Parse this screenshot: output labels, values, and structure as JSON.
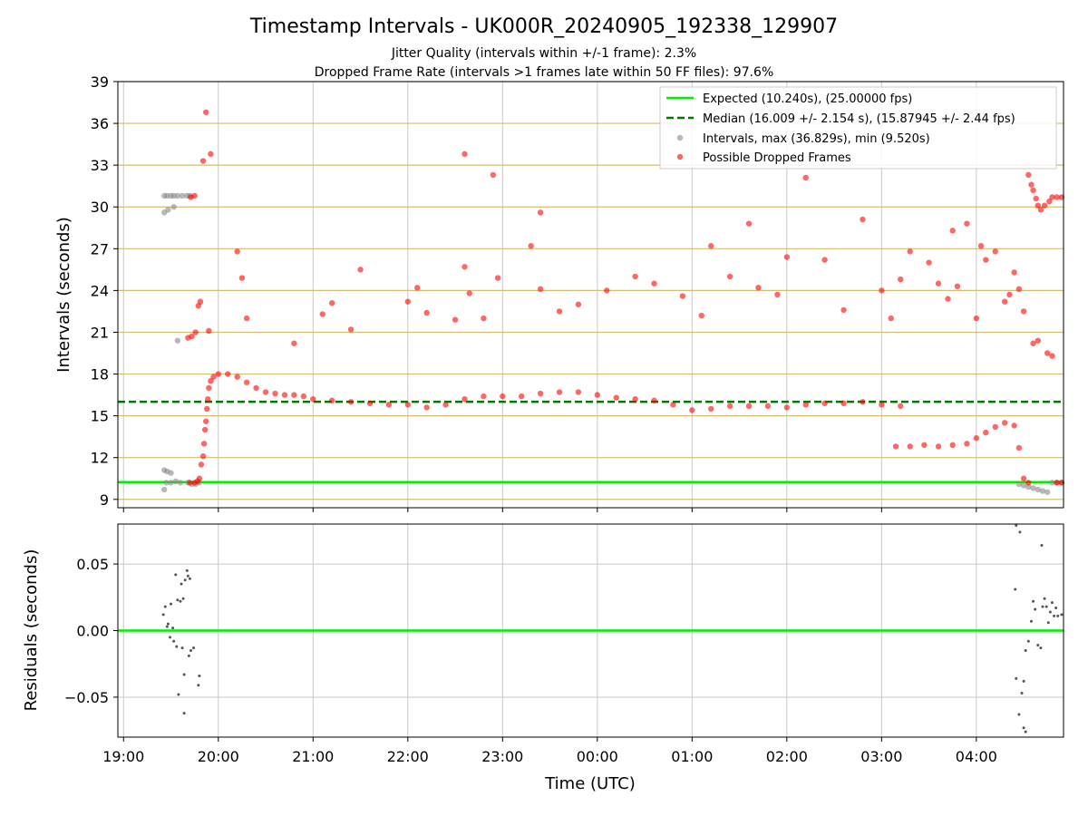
{
  "chart_data": [
    {
      "type": "scatter",
      "title": "Timestamp Intervals - UK000R_20240905_192338_129907",
      "subtitle_lines": [
        "Jitter Quality (intervals within +/-1 frame): 2.3%",
        "Dropped Frame Rate (intervals >1 frames late within 50 FF files): 97.6%"
      ],
      "xlabel": "",
      "ylabel": "Intervals (seconds)",
      "x_unit": "hours since 19:00 UTC",
      "xlim": [
        -0.06,
        9.92
      ],
      "ylim": [
        8.4,
        39
      ],
      "yticks": [
        9,
        12,
        15,
        18,
        21,
        24,
        27,
        30,
        33,
        36,
        39
      ],
      "ytick_labels": [
        "9",
        "12",
        "15",
        "18",
        "21",
        "24",
        "27",
        "30",
        "33",
        "36",
        "39"
      ],
      "grid": "horizontal-gold, vertical-gray",
      "legend_position": "upper-right",
      "legend": [
        "Expected (10.240s), (25.00000 fps)",
        "Median (16.009 +/- 2.154 s), (15.87945 +/- 2.44 fps)",
        "Intervals, max (36.829s), min (9.520s)",
        "Possible Dropped Frames"
      ],
      "expected_line": 10.24,
      "median_line": 16.009,
      "colors": {
        "expected": "#00ee00",
        "median": "#007700",
        "intervals": "#888888",
        "dropped": "#ff0000",
        "hgrid": "#d4bd74"
      },
      "series": [
        {
          "name": "Intervals, max (36.829s), min (9.520s)",
          "points": [
            [
              0.43,
              9.7
            ],
            [
              0.45,
              10.2
            ],
            [
              0.5,
              10.2
            ],
            [
              0.55,
              10.3
            ],
            [
              0.6,
              10.2
            ],
            [
              0.68,
              10.2
            ],
            [
              0.72,
              10.1
            ],
            [
              0.76,
              10.1
            ],
            [
              0.8,
              10.2
            ],
            [
              0.43,
              11.1
            ],
            [
              0.46,
              11.0
            ],
            [
              0.5,
              10.9
            ],
            [
              0.43,
              29.6
            ],
            [
              0.47,
              29.8
            ],
            [
              0.53,
              30.0
            ],
            [
              0.43,
              30.8
            ],
            [
              0.46,
              30.8
            ],
            [
              0.5,
              30.8
            ],
            [
              0.53,
              30.8
            ],
            [
              0.57,
              30.8
            ],
            [
              0.62,
              30.8
            ],
            [
              0.67,
              30.8
            ],
            [
              0.7,
              30.8
            ],
            [
              0.57,
              20.4
            ],
            [
              9.45,
              10.1
            ],
            [
              9.5,
              10.0
            ],
            [
              9.55,
              9.9
            ],
            [
              9.6,
              9.8
            ],
            [
              9.65,
              9.7
            ],
            [
              9.7,
              9.6
            ],
            [
              9.75,
              9.52
            ],
            [
              9.8,
              10.2
            ],
            [
              9.85,
              10.2
            ],
            [
              9.9,
              10.2
            ]
          ]
        },
        {
          "name": "Possible Dropped Frames",
          "points": [
            [
              0.7,
              10.2
            ],
            [
              0.75,
              10.2
            ],
            [
              0.78,
              10.3
            ],
            [
              0.8,
              10.5
            ],
            [
              0.82,
              11.5
            ],
            [
              0.84,
              12.1
            ],
            [
              0.85,
              13.0
            ],
            [
              0.86,
              14.0
            ],
            [
              0.87,
              14.6
            ],
            [
              0.88,
              15.5
            ],
            [
              0.89,
              16.2
            ],
            [
              0.9,
              17.0
            ],
            [
              0.92,
              17.5
            ],
            [
              0.95,
              17.8
            ],
            [
              0.68,
              20.6
            ],
            [
              0.72,
              20.7
            ],
            [
              0.76,
              21.0
            ],
            [
              0.79,
              22.9
            ],
            [
              0.81,
              23.2
            ],
            [
              0.9,
              21.1
            ],
            [
              0.84,
              33.3
            ],
            [
              0.87,
              36.8
            ],
            [
              0.92,
              33.8
            ],
            [
              0.71,
              30.7
            ],
            [
              0.75,
              30.8
            ],
            [
              1.0,
              18.0
            ],
            [
              1.1,
              18.0
            ],
            [
              1.2,
              17.8
            ],
            [
              1.3,
              17.4
            ],
            [
              1.4,
              17.0
            ],
            [
              1.5,
              16.7
            ],
            [
              1.6,
              16.6
            ],
            [
              1.7,
              16.5
            ],
            [
              1.8,
              16.5
            ],
            [
              1.9,
              16.4
            ],
            [
              2.0,
              16.2
            ],
            [
              2.2,
              16.1
            ],
            [
              2.4,
              16.0
            ],
            [
              2.6,
              15.9
            ],
            [
              2.8,
              15.8
            ],
            [
              3.0,
              15.8
            ],
            [
              3.2,
              15.6
            ],
            [
              3.4,
              15.8
            ],
            [
              3.6,
              16.2
            ],
            [
              3.8,
              16.4
            ],
            [
              4.0,
              16.4
            ],
            [
              4.2,
              16.4
            ],
            [
              4.4,
              16.6
            ],
            [
              4.6,
              16.7
            ],
            [
              4.8,
              16.7
            ],
            [
              5.0,
              16.5
            ],
            [
              5.2,
              16.3
            ],
            [
              5.4,
              16.2
            ],
            [
              5.6,
              16.1
            ],
            [
              5.8,
              15.8
            ],
            [
              6.0,
              15.4
            ],
            [
              6.2,
              15.5
            ],
            [
              6.4,
              15.7
            ],
            [
              6.6,
              15.7
            ],
            [
              6.8,
              15.7
            ],
            [
              7.0,
              15.6
            ],
            [
              7.2,
              15.8
            ],
            [
              7.4,
              15.9
            ],
            [
              7.6,
              15.9
            ],
            [
              7.8,
              16.0
            ],
            [
              8.0,
              15.8
            ],
            [
              8.2,
              15.7
            ],
            [
              8.15,
              12.8
            ],
            [
              8.3,
              12.8
            ],
            [
              8.45,
              12.9
            ],
            [
              8.6,
              12.8
            ],
            [
              8.75,
              12.9
            ],
            [
              8.9,
              13.0
            ],
            [
              9.0,
              13.4
            ],
            [
              9.1,
              13.8
            ],
            [
              9.2,
              14.2
            ],
            [
              9.3,
              14.5
            ],
            [
              9.4,
              14.3
            ],
            [
              9.45,
              12.7
            ],
            [
              9.5,
              10.5
            ],
            [
              1.2,
              26.8
            ],
            [
              1.25,
              24.9
            ],
            [
              1.3,
              22.0
            ],
            [
              1.8,
              20.2
            ],
            [
              2.1,
              22.3
            ],
            [
              2.2,
              23.1
            ],
            [
              2.4,
              21.2
            ],
            [
              2.5,
              25.5
            ],
            [
              3.0,
              23.2
            ],
            [
              3.1,
              24.2
            ],
            [
              3.2,
              22.4
            ],
            [
              3.5,
              21.9
            ],
            [
              3.6,
              25.7
            ],
            [
              3.65,
              23.8
            ],
            [
              3.8,
              22.0
            ],
            [
              3.6,
              33.8
            ],
            [
              3.9,
              32.3
            ],
            [
              3.95,
              24.9
            ],
            [
              4.3,
              27.2
            ],
            [
              4.4,
              24.1
            ],
            [
              4.4,
              29.6
            ],
            [
              4.6,
              22.5
            ],
            [
              4.8,
              23.0
            ],
            [
              5.1,
              24.0
            ],
            [
              5.4,
              25.0
            ],
            [
              5.6,
              24.5
            ],
            [
              5.9,
              23.6
            ],
            [
              6.1,
              22.2
            ],
            [
              6.2,
              27.2
            ],
            [
              6.4,
              25.0
            ],
            [
              6.6,
              28.8
            ],
            [
              6.7,
              24.2
            ],
            [
              6.9,
              23.7
            ],
            [
              7.0,
              26.4
            ],
            [
              7.2,
              32.1
            ],
            [
              7.4,
              26.2
            ],
            [
              7.6,
              22.6
            ],
            [
              7.8,
              29.1
            ],
            [
              8.0,
              24.0
            ],
            [
              8.1,
              22.0
            ],
            [
              8.2,
              24.8
            ],
            [
              8.3,
              26.8
            ],
            [
              8.5,
              26.0
            ],
            [
              8.6,
              24.5
            ],
            [
              8.7,
              23.4
            ],
            [
              8.75,
              28.3
            ],
            [
              8.8,
              24.3
            ],
            [
              8.9,
              28.8
            ],
            [
              9.0,
              22.0
            ],
            [
              9.05,
              27.2
            ],
            [
              9.1,
              26.2
            ],
            [
              9.2,
              26.8
            ],
            [
              9.3,
              23.2
            ],
            [
              9.35,
              23.7
            ],
            [
              9.4,
              25.3
            ],
            [
              9.45,
              24.1
            ],
            [
              9.5,
              22.5
            ],
            [
              9.55,
              32.3
            ],
            [
              9.58,
              31.6
            ],
            [
              9.6,
              31.2
            ],
            [
              9.63,
              30.6
            ],
            [
              9.65,
              30.1
            ],
            [
              9.68,
              29.8
            ],
            [
              9.72,
              30.1
            ],
            [
              9.77,
              30.4
            ],
            [
              9.8,
              30.7
            ],
            [
              9.85,
              30.7
            ],
            [
              9.9,
              30.7
            ],
            [
              9.6,
              20.2
            ],
            [
              9.65,
              20.4
            ],
            [
              9.75,
              19.5
            ],
            [
              9.8,
              19.3
            ],
            [
              9.55,
              10.2
            ],
            [
              9.85,
              10.2
            ],
            [
              9.9,
              10.2
            ]
          ]
        }
      ]
    },
    {
      "type": "scatter",
      "xlabel": "Time (UTC)",
      "ylabel": "Residuals (seconds)",
      "x_unit": "hours since 19:00 UTC",
      "xlim": [
        -0.06,
        9.92
      ],
      "ylim": [
        -0.08,
        0.08
      ],
      "xticks": [
        0,
        1,
        2,
        3,
        4,
        5,
        6,
        7,
        8,
        9
      ],
      "xtick_labels": [
        "19:00",
        "20:00",
        "21:00",
        "22:00",
        "23:00",
        "00:00",
        "01:00",
        "02:00",
        "03:00",
        "04:00"
      ],
      "yticks": [
        -0.05,
        0.0,
        0.05
      ],
      "ytick_labels": [
        "−0.05",
        "0.00",
        "0.05"
      ],
      "grid": "both",
      "zero_line": 0.0,
      "points": [
        [
          0.42,
          0.012
        ],
        [
          0.44,
          0.018
        ],
        [
          0.46,
          0.003
        ],
        [
          0.47,
          0.005
        ],
        [
          0.49,
          -0.005
        ],
        [
          0.5,
          0.02
        ],
        [
          0.52,
          0.002
        ],
        [
          0.53,
          -0.008
        ],
        [
          0.55,
          0.042
        ],
        [
          0.56,
          -0.012
        ],
        [
          0.57,
          0.023
        ],
        [
          0.6,
          0.022
        ],
        [
          0.61,
          0.035
        ],
        [
          0.62,
          -0.013
        ],
        [
          0.63,
          0.024
        ],
        [
          0.65,
          0.038
        ],
        [
          0.67,
          0.045
        ],
        [
          0.68,
          0.041
        ],
        [
          0.7,
          0.039
        ],
        [
          0.71,
          -0.015
        ],
        [
          0.64,
          -0.033
        ],
        [
          0.58,
          -0.048
        ],
        [
          0.64,
          -0.062
        ],
        [
          0.69,
          -0.019
        ],
        [
          0.8,
          -0.034
        ],
        [
          0.79,
          -0.041
        ],
        [
          0.74,
          -0.013
        ],
        [
          9.42,
          0.079
        ],
        [
          9.46,
          0.074
        ],
        [
          9.41,
          0.031
        ],
        [
          9.42,
          -0.036
        ],
        [
          9.45,
          -0.063
        ],
        [
          9.48,
          -0.047
        ],
        [
          9.5,
          -0.073
        ],
        [
          9.52,
          -0.076
        ],
        [
          9.5,
          -0.038
        ],
        [
          9.52,
          -0.015
        ],
        [
          9.55,
          -0.008
        ],
        [
          9.58,
          0.007
        ],
        [
          9.6,
          0.022
        ],
        [
          9.62,
          0.016
        ],
        [
          9.65,
          -0.011
        ],
        [
          9.68,
          -0.013
        ],
        [
          9.7,
          0.018
        ],
        [
          9.72,
          0.024
        ],
        [
          9.74,
          0.018
        ],
        [
          9.76,
          0.006
        ],
        [
          9.78,
          0.014
        ],
        [
          9.8,
          0.021
        ],
        [
          9.82,
          0.011
        ],
        [
          9.84,
          0.017
        ],
        [
          9.86,
          0.011
        ],
        [
          9.9,
          0.012
        ],
        [
          9.69,
          0.064
        ]
      ]
    }
  ]
}
